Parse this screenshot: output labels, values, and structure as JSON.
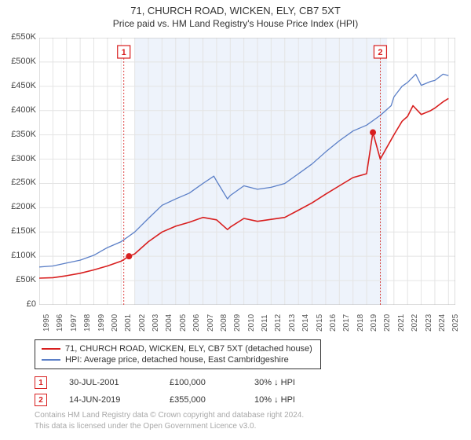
{
  "title": "71, CHURCH ROAD, WICKEN, ELY, CB7 5XT",
  "subtitle": "Price paid vs. HM Land Registry's House Price Index (HPI)",
  "chart": {
    "type": "line",
    "background_color": "#ffffff",
    "grid_color": "#e4e4e4",
    "shade_color": "#eef3fb",
    "shade_xstart": 2002.0,
    "shade_xend": 2020.5,
    "xlim": [
      1995,
      2025.5
    ],
    "ylim": [
      0,
      550000
    ],
    "ytick_step": 50000,
    "xticks": [
      1995,
      1996,
      1997,
      1998,
      1999,
      2000,
      2001,
      2002,
      2003,
      2004,
      2005,
      2006,
      2007,
      2008,
      2009,
      2010,
      2011,
      2012,
      2013,
      2014,
      2015,
      2016,
      2017,
      2018,
      2019,
      2020,
      2021,
      2022,
      2023,
      2024,
      2025
    ],
    "ylabels": [
      "£0",
      "£50K",
      "£100K",
      "£150K",
      "£200K",
      "£250K",
      "£300K",
      "£350K",
      "£400K",
      "£450K",
      "£500K",
      "£550K"
    ],
    "title_fontsize": 13,
    "label_fontsize": 11,
    "tick_fontsize": 10,
    "series": [
      {
        "name": "price_paid",
        "label": "71, CHURCH ROAD, WICKEN, ELY, CB7 5XT (detached house)",
        "color": "#d81e1e",
        "line_width": 1.6,
        "data": [
          [
            1995,
            55000
          ],
          [
            1996,
            56000
          ],
          [
            1997,
            60000
          ],
          [
            1998,
            65000
          ],
          [
            1999,
            72000
          ],
          [
            2000,
            80000
          ],
          [
            2001,
            90000
          ],
          [
            2001.58,
            100000
          ],
          [
            2002,
            105000
          ],
          [
            2003,
            130000
          ],
          [
            2004,
            150000
          ],
          [
            2005,
            162000
          ],
          [
            2006,
            170000
          ],
          [
            2007,
            180000
          ],
          [
            2008,
            175000
          ],
          [
            2008.8,
            155000
          ],
          [
            2009,
            160000
          ],
          [
            2010,
            178000
          ],
          [
            2011,
            172000
          ],
          [
            2012,
            176000
          ],
          [
            2013,
            180000
          ],
          [
            2014,
            195000
          ],
          [
            2015,
            210000
          ],
          [
            2016,
            228000
          ],
          [
            2017,
            245000
          ],
          [
            2018,
            262000
          ],
          [
            2019,
            270000
          ],
          [
            2019.46,
            355000
          ],
          [
            2020,
            300000
          ],
          [
            2020.8,
            340000
          ],
          [
            2021,
            350000
          ],
          [
            2021.6,
            378000
          ],
          [
            2022,
            388000
          ],
          [
            2022.4,
            410000
          ],
          [
            2023,
            392000
          ],
          [
            2023.7,
            400000
          ],
          [
            2024,
            405000
          ],
          [
            2024.6,
            418000
          ],
          [
            2025,
            425000
          ]
        ]
      },
      {
        "name": "hpi",
        "label": "HPI: Average price, detached house, East Cambridgeshire",
        "color": "#5b7fc7",
        "line_width": 1.3,
        "data": [
          [
            1995,
            78000
          ],
          [
            1996,
            80000
          ],
          [
            1997,
            86000
          ],
          [
            1998,
            92000
          ],
          [
            1999,
            102000
          ],
          [
            2000,
            118000
          ],
          [
            2001,
            130000
          ],
          [
            2002,
            150000
          ],
          [
            2003,
            178000
          ],
          [
            2004,
            205000
          ],
          [
            2005,
            218000
          ],
          [
            2006,
            230000
          ],
          [
            2007,
            250000
          ],
          [
            2007.8,
            265000
          ],
          [
            2008,
            255000
          ],
          [
            2008.8,
            218000
          ],
          [
            2009,
            225000
          ],
          [
            2010,
            245000
          ],
          [
            2011,
            238000
          ],
          [
            2012,
            242000
          ],
          [
            2013,
            250000
          ],
          [
            2014,
            270000
          ],
          [
            2015,
            290000
          ],
          [
            2016,
            315000
          ],
          [
            2017,
            338000
          ],
          [
            2018,
            358000
          ],
          [
            2019,
            370000
          ],
          [
            2019.5,
            380000
          ],
          [
            2020,
            390000
          ],
          [
            2020.8,
            410000
          ],
          [
            2021,
            428000
          ],
          [
            2021.6,
            450000
          ],
          [
            2022,
            458000
          ],
          [
            2022.6,
            475000
          ],
          [
            2023,
            452000
          ],
          [
            2023.7,
            460000
          ],
          [
            2024,
            462000
          ],
          [
            2024.6,
            475000
          ],
          [
            2025,
            472000
          ]
        ]
      }
    ],
    "markers": [
      {
        "n": 1,
        "x": 2001.58,
        "y": 100000,
        "box_x": 2001.2,
        "box_y_top": true,
        "color": "#d81e1e"
      },
      {
        "n": 2,
        "x": 2019.46,
        "y": 355000,
        "box_x": 2020.0,
        "box_y_top": true,
        "color": "#d81e1e"
      }
    ]
  },
  "legend": {
    "items": [
      {
        "color": "#d81e1e",
        "label": "71, CHURCH ROAD, WICKEN, ELY, CB7 5XT (detached house)"
      },
      {
        "color": "#5b7fc7",
        "label": "HPI: Average price, detached house, East Cambridgeshire"
      }
    ]
  },
  "transactions": [
    {
      "n": 1,
      "color": "#d81e1e",
      "date": "30-JUL-2001",
      "price": "£100,000",
      "diff": "30% ↓ HPI"
    },
    {
      "n": 2,
      "color": "#d81e1e",
      "date": "14-JUN-2019",
      "price": "£355,000",
      "diff": "10% ↓ HPI"
    }
  ],
  "footer": {
    "line1": "Contains HM Land Registry data © Crown copyright and database right 2024.",
    "line2": "This data is licensed under the Open Government Licence v3.0."
  }
}
